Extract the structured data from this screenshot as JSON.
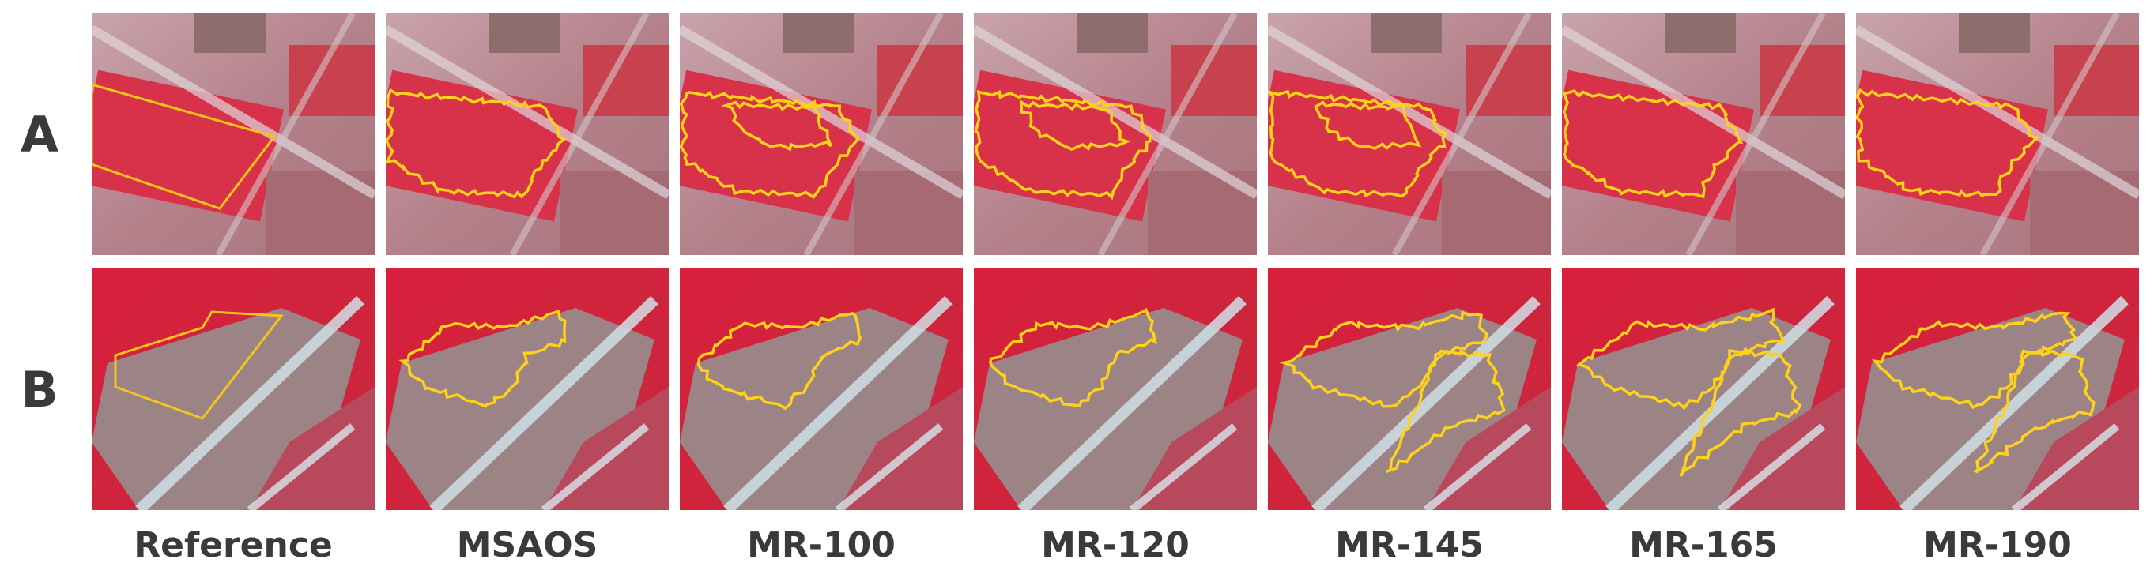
{
  "rows": [
    {
      "label": "A"
    },
    {
      "label": "B"
    }
  ],
  "columns": [
    "Reference",
    "MSAOS",
    "MR-100",
    "MR-120",
    "MR-145",
    "MR-165",
    "MR-190"
  ]
}
